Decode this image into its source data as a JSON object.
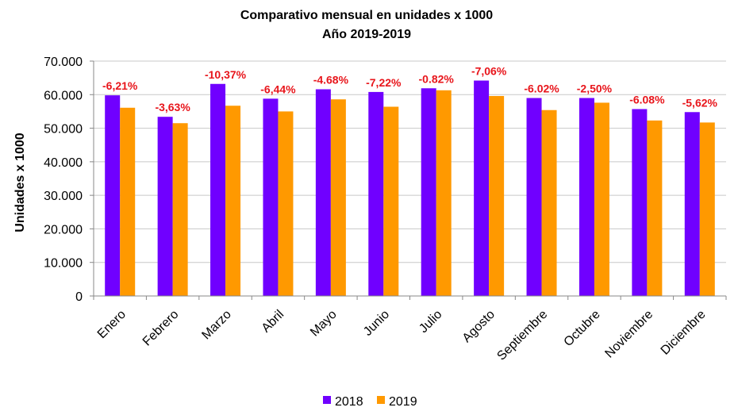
{
  "chart_data": {
    "type": "bar",
    "title": "Comparativo mensual en unidades x 1000",
    "subtitle": "Año 2019-2019",
    "ylabel": "Unidades x 1000",
    "ylim": [
      0,
      70000
    ],
    "ytick_labels": [
      "0",
      "10.000",
      "20.000",
      "30.000",
      "40.000",
      "50.000",
      "60.000",
      "70.000"
    ],
    "categories": [
      "Enero",
      "Febrero",
      "Marzo",
      "Abril",
      "Mayo",
      "Junio",
      "Julio",
      "Agosto",
      "Septiembre",
      "Octubre",
      "Noviembre",
      "Diciembre"
    ],
    "series": [
      {
        "name": "2018",
        "color": "#7000ff",
        "values": [
          59800,
          53400,
          63200,
          58800,
          61600,
          60800,
          61900,
          64200,
          59000,
          59000,
          55700,
          54800
        ]
      },
      {
        "name": "2019",
        "color": "#ff9900",
        "values": [
          56100,
          51500,
          56700,
          55000,
          58600,
          56400,
          61300,
          59600,
          55400,
          57600,
          52300,
          51700
        ]
      }
    ],
    "annotations": [
      "-6,21%",
      "-3,63%",
      "-10,37%",
      "-6,44%",
      "-4.68%",
      "-7,22%",
      "-0.82%",
      "-7,06%",
      "-6.02%",
      "-2,50%",
      "-6.08%",
      "-5,62%"
    ],
    "annotation_color": "#e8151b",
    "grid": true,
    "legend_position": "bottom"
  }
}
